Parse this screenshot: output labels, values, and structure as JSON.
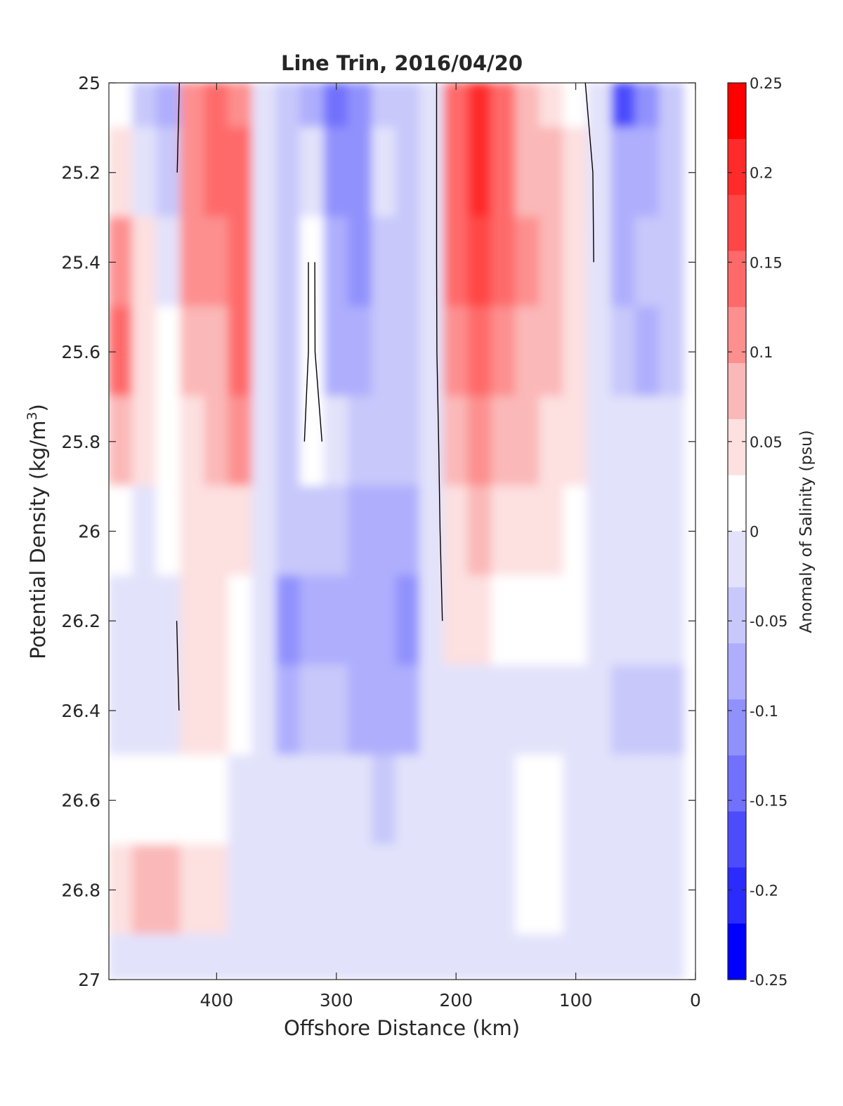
{
  "chart_data": {
    "type": "heatmap",
    "title": "Line Trin, 2016/04/20",
    "xlabel": "Offshore Distance (km)",
    "ylabel_main": "Potential Density (kg/m",
    "ylabel_sup": "3",
    "ylabel_close": ")",
    "colorbar_label": "Anomaly of Salinity (psu)",
    "xlim": [
      0,
      490
    ],
    "x_reversed": true,
    "ylim": [
      25,
      27
    ],
    "y_reversed": true,
    "xticks": [
      400,
      300,
      200,
      100,
      0
    ],
    "xtick_labels": [
      "400",
      "300",
      "200",
      "100",
      "0"
    ],
    "yticks": [
      25,
      25.2,
      25.4,
      25.6,
      25.8,
      26,
      26.2,
      26.4,
      26.6,
      26.8,
      27
    ],
    "ytick_labels": [
      "25",
      "25.2",
      "25.4",
      "25.6",
      "25.8",
      "26",
      "26.2",
      "26.4",
      "26.6",
      "26.8",
      "27"
    ],
    "clim": [
      -0.25,
      0.25
    ],
    "colorbar_ticks": [
      0.25,
      0.2,
      0.15,
      0.1,
      0.05,
      0,
      -0.05,
      -0.1,
      -0.15,
      -0.2,
      -0.25
    ],
    "colorbar_tick_labels": [
      "0.25",
      "0.2",
      "0.15",
      "0.1",
      "0.05",
      "0",
      "-0.05",
      "-0.1",
      "-0.15",
      "-0.2",
      "-0.25"
    ],
    "colorbar_colors": [
      "#ff0000",
      "#ff2a2a",
      "#ff4646",
      "#fe6a6a",
      "#fd8f8f",
      "#fbb8b8",
      "#fde0e0",
      "#ffffff",
      "#e2e2fb",
      "#c8c8fb",
      "#aeaefd",
      "#9191fd",
      "#7171fd",
      "#4c4cfd",
      "#2b2bfe",
      "#0000ff"
    ],
    "x_grid": [
      480,
      460,
      440,
      420,
      400,
      380,
      360,
      340,
      320,
      300,
      280,
      260,
      240,
      220,
      200,
      180,
      160,
      140,
      120,
      100,
      80,
      60,
      40,
      20
    ],
    "y_grid": [
      25,
      25.2,
      25.4,
      25.6,
      25.8,
      26,
      26.2,
      26.4,
      26.6,
      26.8,
      27
    ],
    "values": [
      [
        0.03,
        -0.04,
        -0.08,
        0.1,
        0.13,
        0.1,
        -0.01,
        -0.06,
        -0.09,
        -0.13,
        -0.1,
        -0.05,
        -0.04,
        -0.03,
        0.13,
        0.2,
        0.15,
        0.07,
        0.05,
        0.02,
        -0.03,
        -0.16,
        -0.11,
        -0.05
      ],
      [
        0.05,
        0.0,
        -0.06,
        0.11,
        0.13,
        0.13,
        0.0,
        -0.05,
        -0.02,
        -0.12,
        -0.12,
        0.0,
        -0.05,
        -0.03,
        0.13,
        0.21,
        0.15,
        0.07,
        0.07,
        0.05,
        -0.02,
        -0.08,
        -0.09,
        -0.05
      ],
      [
        0.1,
        0.06,
        0.0,
        0.11,
        0.12,
        0.15,
        0.0,
        -0.05,
        0.01,
        -0.09,
        -0.1,
        -0.04,
        -0.05,
        -0.03,
        0.13,
        0.18,
        0.15,
        0.1,
        0.07,
        0.06,
        -0.02,
        -0.08,
        -0.06,
        -0.05
      ],
      [
        0.13,
        0.05,
        0.03,
        0.09,
        0.09,
        0.13,
        0.0,
        -0.05,
        0.01,
        -0.08,
        -0.07,
        -0.05,
        -0.05,
        -0.03,
        0.12,
        0.14,
        0.12,
        0.09,
        0.08,
        0.06,
        0.0,
        -0.05,
        -0.07,
        -0.05
      ],
      [
        0.09,
        0.05,
        0.03,
        0.05,
        0.07,
        0.1,
        0.0,
        -0.04,
        0.02,
        -0.03,
        -0.05,
        -0.05,
        -0.05,
        -0.03,
        0.08,
        0.11,
        0.09,
        0.07,
        0.06,
        0.04,
        0.0,
        -0.03,
        -0.03,
        0.0
      ],
      [
        0.03,
        0.0,
        0.02,
        0.05,
        0.05,
        0.05,
        0.0,
        -0.06,
        -0.05,
        -0.06,
        -0.07,
        -0.07,
        -0.07,
        -0.03,
        0.06,
        0.08,
        0.05,
        0.05,
        0.04,
        0.02,
        0.0,
        -0.01,
        -0.01,
        -0.01
      ],
      [
        0.0,
        -0.03,
        -0.02,
        0.04,
        0.04,
        0.03,
        0.0,
        -0.1,
        -0.07,
        -0.07,
        -0.07,
        -0.08,
        -0.11,
        -0.03,
        0.04,
        0.04,
        0.01,
        0.02,
        0.03,
        0.01,
        0.0,
        -0.01,
        -0.03,
        -0.03
      ],
      [
        0.0,
        -0.03,
        -0.03,
        0.04,
        0.04,
        0.02,
        0.0,
        -0.07,
        -0.06,
        -0.06,
        -0.07,
        -0.08,
        -0.08,
        -0.02,
        0.0,
        0.0,
        0.0,
        0.0,
        0.0,
        0.0,
        0.0,
        -0.05,
        -0.06,
        -0.05
      ],
      [
        0.02,
        0.02,
        0.02,
        0.03,
        0.02,
        0.0,
        0.0,
        0.0,
        0.0,
        -0.03,
        -0.03,
        -0.04,
        -0.03,
        -0.01,
        0.0,
        0.0,
        0.0,
        0.02,
        0.03,
        0.0,
        0.0,
        -0.01,
        -0.02,
        -0.01
      ],
      [
        0.06,
        0.07,
        0.08,
        0.05,
        0.04,
        0.0,
        0.0,
        -0.03,
        0.0,
        0.0,
        0.0,
        0.0,
        0.0,
        0.0,
        0.0,
        0.0,
        0.0,
        0.02,
        0.01,
        0.0,
        0.0,
        0.0,
        0.0,
        0.0
      ],
      [
        0.0,
        0.0,
        0.0,
        0.0,
        0.0,
        0.0,
        0.0,
        0.0,
        0.0,
        0.0,
        0.0,
        0.0,
        0.0,
        0.0,
        0.0,
        0.0,
        0.0,
        0.0,
        0.0,
        0.0,
        0.0,
        0.0,
        0.0,
        0.0
      ]
    ]
  }
}
